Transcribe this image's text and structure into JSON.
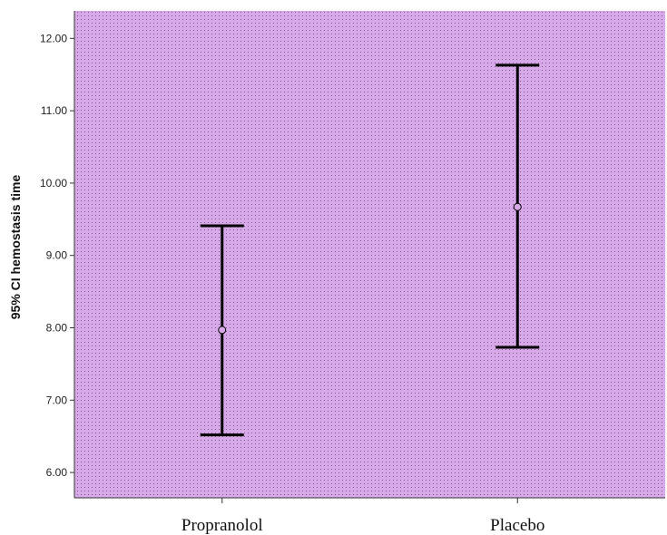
{
  "chart_data": {
    "type": "error-bar",
    "title": "",
    "xlabel": "",
    "ylabel": "95% CI hemostasis time",
    "ylim": [
      5.65,
      12.38
    ],
    "yticks": [
      "6.00",
      "7.00",
      "8.00",
      "9.00",
      "10.00",
      "11.00",
      "12.00"
    ],
    "categories": [
      "Propranolol",
      "Placebo"
    ],
    "means": [
      7.97,
      9.67
    ],
    "ci_lower": [
      6.52,
      7.73
    ],
    "ci_upper": [
      9.41,
      11.63
    ],
    "plot_background": "#d8a9e8",
    "pattern_dot_color": "#7a5a86",
    "marker_color": "#000000",
    "grid": false,
    "legend": "none"
  }
}
